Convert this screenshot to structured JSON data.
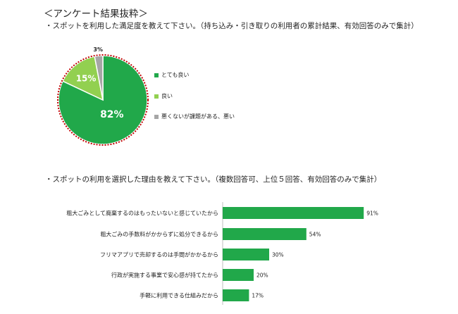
{
  "section_title": "＜アンケート結果抜粋＞",
  "question1": "・スポットを利用した満足度を教えて下さい。（持ち込み・引き取りの利用者の累計結果、有効回答のみで集計）",
  "question2": "・スポットの利用を選択した理由を教えて下さい。（複数回答可、上位５回答、有効回答のみで集計）",
  "chart_data": [
    {
      "type": "pie",
      "slices": [
        {
          "name": "とても良い",
          "value": 82,
          "label": "82%",
          "color": "#21a84a"
        },
        {
          "name": "良い",
          "value": 15,
          "label": "15%",
          "color": "#92d050"
        },
        {
          "name": "悪くないが課題がある、悪い",
          "value": 3,
          "label": "3%",
          "color": "#a6a6a6"
        }
      ],
      "legend_position": "right",
      "border_color": "#c00000"
    },
    {
      "type": "bar",
      "orientation": "horizontal",
      "categories": [
        "粗大ごみとして廃棄するのはもったいないと感じていたから",
        "粗大ごみの手数料がかからずに処分できるから",
        "フリマアプリで売却するのは手間がかかるから",
        "行政が実施する事業で安心感が持てたから",
        "手軽に利用できる仕組みだから"
      ],
      "values": [
        91,
        54,
        30,
        20,
        17
      ],
      "labels": [
        "91%",
        "54%",
        "30%",
        "20%",
        "17%"
      ],
      "xlim": [
        0,
        100
      ],
      "color": "#21a84a"
    }
  ]
}
